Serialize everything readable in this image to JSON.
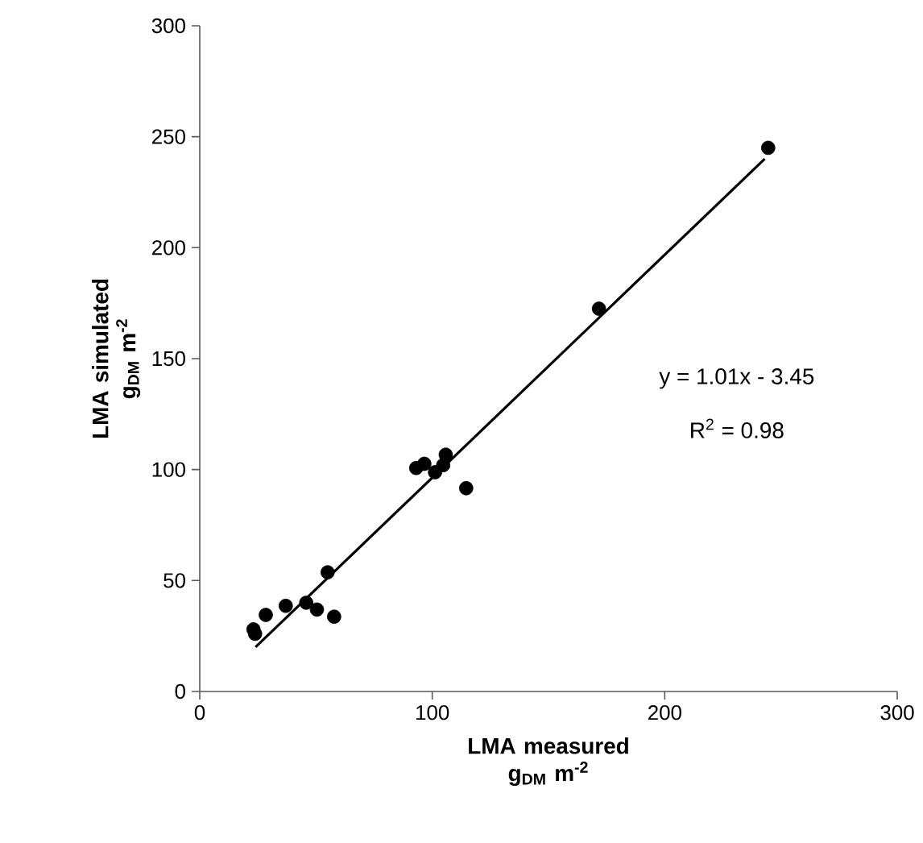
{
  "chart_data": {
    "type": "scatter",
    "xlabel": "LMA measured g$_{DM}$ m$^{-2}$",
    "ylabel": "LMA simulated g$_{DM}$ m$^{-2}$",
    "xlim": [
      0,
      300
    ],
    "ylim": [
      0,
      300
    ],
    "xticks": [
      0,
      100,
      200,
      300
    ],
    "yticks": [
      0,
      50,
      100,
      150,
      200,
      250,
      300
    ],
    "annotations": [
      "y = 1.01x - 3.45",
      "R$^{2}$ = 0.98"
    ],
    "series": [
      {
        "marker": "circle",
        "color": "#000000",
        "x": [
          244.5,
          171.7,
          114.6,
          93.1,
          96.6,
          101.2,
          104.7,
          105.8,
          55,
          37,
          45.8,
          50.4,
          57.8,
          28.4,
          23.1,
          23.8
        ],
        "values": [
          245,
          172.5,
          91.6,
          100.7,
          102.6,
          98.8,
          102,
          106.7,
          53.7,
          38.6,
          40,
          36.9,
          33.7,
          34.5,
          28,
          26
        ]
      },
      {
        "type": "line",
        "marker": "none",
        "line_style": "solid",
        "color": "#000000",
        "x": [
          24,
          243
        ],
        "values": [
          20,
          240
        ]
      }
    ]
  }
}
